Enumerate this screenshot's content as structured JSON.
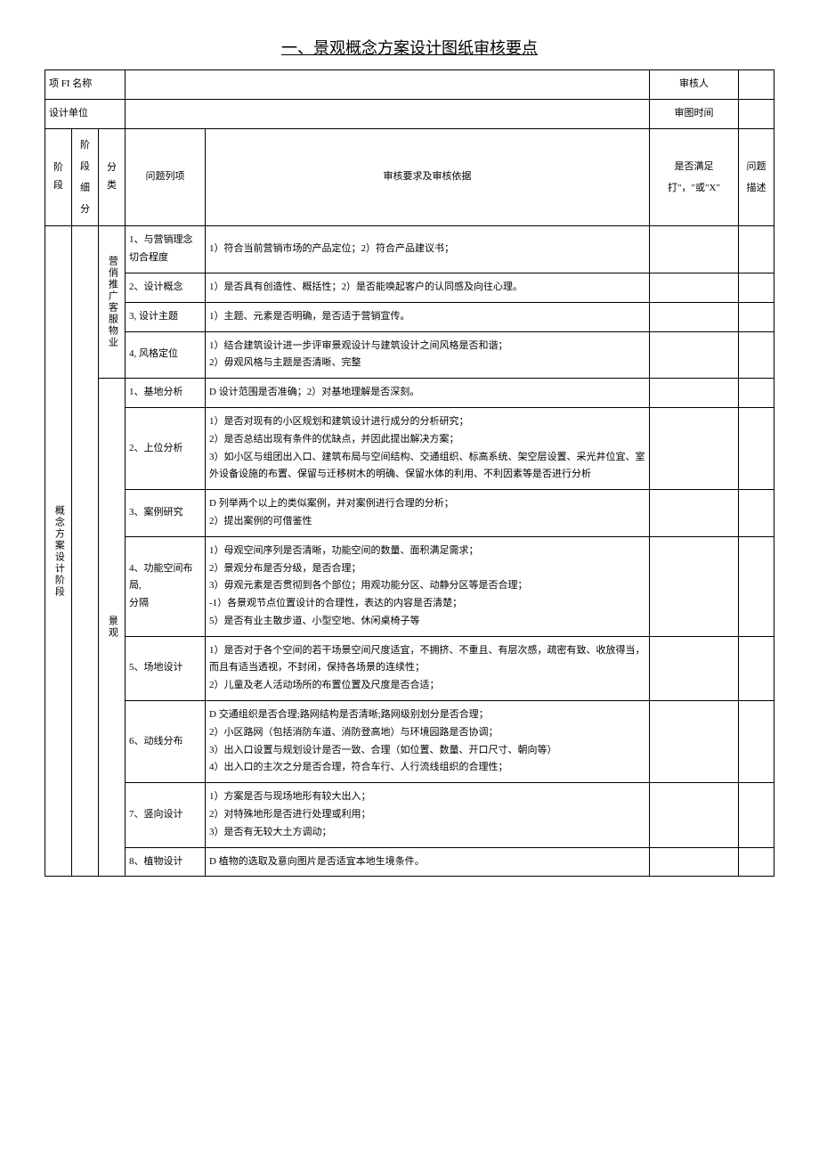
{
  "title": "一、景观概念方案设计图纸审核要点",
  "header": {
    "project_label": "项 FI 名称",
    "reviewer_label": "审核人",
    "design_unit_label": "设计单位",
    "review_time_label": "审图时间"
  },
  "columns": {
    "stage": "阶段",
    "substage": "阶段\n细分",
    "category": "分类",
    "item": "问题列项",
    "criteria": "审核要求及审核依据",
    "satisfy": "是否满足\n打\"，\"或\"X\"",
    "desc": "问题\n描述"
  },
  "stage_label": "概念方案设计阶段",
  "cat1_label": "营俏推广客服物业",
  "cat2_label": "景观",
  "rows": [
    {
      "item": "1、与营销理念切合程度",
      "criteria": "1）符合当前营销市场的产品定位；2）符合产品建议书；"
    },
    {
      "item": "2、设计概念",
      "criteria": "1）是否具有创造性、概括性；2）是否能唤起客户的认同感及向往心理。"
    },
    {
      "item": "3, 设计主题",
      "criteria": "1）主题、元素是否明确，是否适于营销宣传。"
    },
    {
      "item": "4, 风格定位",
      "criteria": "1）结合建筑设计进一步评审景观设计与建筑设计之间风格是否和谐；\n2）毋观风格与主题是否清晰、完整"
    },
    {
      "item": "1、基地分析",
      "criteria": "D 设计范围是否准确；2）对基地理解是否深刻。"
    },
    {
      "item": "2、上位分析",
      "criteria": "1）是否对现有的小区规划和建筑设计进行成分的分析研究；\n2）是否总结出现有条件的优缺点，并因此提出解决方案；\n3）如小区与组团出入口、建筑布局与空间结构、交通组织、标高系统、架空层设置、采光井位宜、室外设备设施的布置、保留与迁移树木的明确、保留水体的利用、不利因素等是否进行分析"
    },
    {
      "item": "3、案例研究",
      "criteria": "D 列举两个以上的类似案例，并对案例进行合理的分析；\n2）提出案例的可借鉴性"
    },
    {
      "item": "4、功能空间布局,\n分隔",
      "criteria": "1）母观空间序列是否清晰，功能空间的数量、面积满足需求；\n2）景观分布是否分级，是否合理；\n3）毋观元素是否贯彻到各个部位；用观功能分区、动静分区等是否合理；\n-1）各景观节点位置设计的合理性，表达的内容是否清楚；\n5）是否有业主散步道、小型空地、休闲桌椅子等"
    },
    {
      "item": "5、场地设计",
      "criteria": "1）是否对于各个空间的若干场景空间尺度适宜，不拥挤、不重且、有层次感，疏密有致、收放得当，而且有适当透视，不封闭，保持各场景的连续性；\n2）儿童及老人活动场所的布置位置及尺度是否合适；"
    },
    {
      "item": "6、动线分布",
      "criteria": "D 交通组织是否合理;路网结构是否清晰;路网级别划分是否合理；\n2）小区路网（包括消防车道、消防登高地）与环境园路是否协调；\n3）出入口设置与规划设计是否一致、合理（如位置、数量、开口尺寸、朝向等）\n4）出入口的主次之分是否合理，符合车行、人行流线组织的合理性；"
    },
    {
      "item": "7、竖向设计",
      "criteria": "1）方案是否与现场地形有较大出入；\n2）对特殊地形是否进行处理或利用；\n3）是否有无较大土方调动；"
    },
    {
      "item": "8、植物设计",
      "criteria": "D 植物的选取及意向图片是否适宜本地生境条件。"
    }
  ]
}
